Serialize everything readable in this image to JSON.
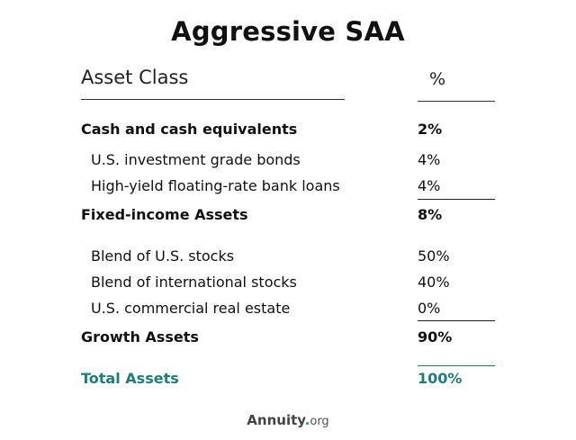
{
  "title": "Aggressive SAA",
  "header": {
    "asset_class": "Asset Class",
    "percent": "%"
  },
  "rows": [
    {
      "label": "Cash and cash equivalents",
      "value": "2%"
    },
    {
      "label": "U.S. investment grade bonds",
      "value": "4%"
    },
    {
      "label": "High-yield floating-rate bank loans",
      "value": "4%"
    },
    {
      "label": "Fixed-income Assets",
      "value": "8%"
    },
    {
      "label": "Blend of U.S. stocks",
      "value": "50%"
    },
    {
      "label": "Blend of international stocks",
      "value": "40%"
    },
    {
      "label": "U.S. commercial real estate",
      "value": "0%"
    },
    {
      "label": "Growth Assets",
      "value": "90%"
    },
    {
      "label": "Total Assets",
      "value": "100%"
    }
  ],
  "colors": {
    "total": "#1f7d79",
    "text": "#111111"
  },
  "logo": {
    "name": "Annuity",
    "dot": ".",
    "tld": "org"
  }
}
